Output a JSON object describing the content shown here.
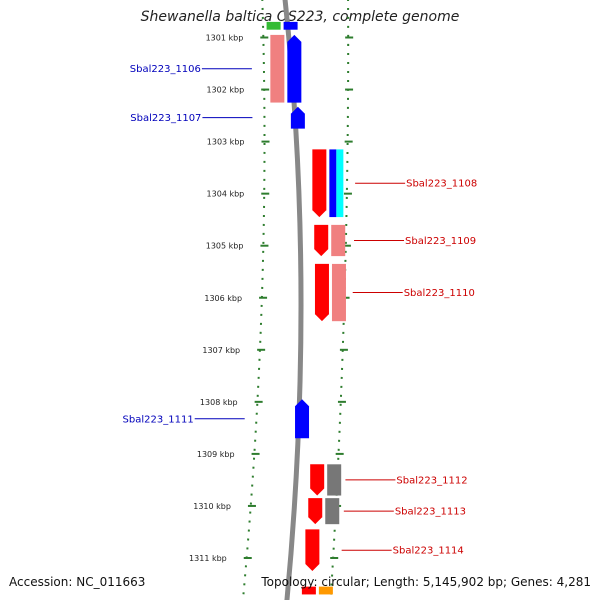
{
  "title": "Shewanella baltica OS223, complete genome",
  "footer": {
    "accession": "Accession: NC_011663",
    "summary": "Topology: circular; Length: 5,145,902 bp; Genes: 4,281"
  },
  "colors": {
    "forward_label": "#cc0000",
    "reverse_label": "#0000bb",
    "ruler": "#2e7d2e",
    "backbone": "#888888"
  },
  "kbp_ticks": [
    {
      "kbp": 1301,
      "label": "1301 kbp"
    },
    {
      "kbp": 1302,
      "label": "1302 kbp"
    },
    {
      "kbp": 1303,
      "label": "1303 kbp"
    },
    {
      "kbp": 1304,
      "label": "1304 kbp"
    },
    {
      "kbp": 1305,
      "label": "1305 kbp"
    },
    {
      "kbp": 1306,
      "label": "1306 kbp"
    },
    {
      "kbp": 1307,
      "label": "1307 kbp"
    },
    {
      "kbp": 1308,
      "label": "1308 kbp"
    },
    {
      "kbp": 1309,
      "label": "1309 kbp"
    },
    {
      "kbp": 1310,
      "label": "1310 kbp"
    },
    {
      "kbp": 1311,
      "label": "1311 kbp"
    }
  ],
  "genes": [
    {
      "id": "gene-1106",
      "label": "Sbal223_1106",
      "strand": "reverse",
      "start_kbp": 1300.95,
      "end_kbp": 1302.25,
      "color": "#0000ff",
      "function_color": "#f08080"
    },
    {
      "id": "gene-1107",
      "label": "Sbal223_1107",
      "strand": "reverse",
      "start_kbp": 1302.33,
      "end_kbp": 1302.75,
      "color": "#0000ff"
    },
    {
      "id": "gene-1108",
      "label": "Sbal223_1108",
      "strand": "forward",
      "start_kbp": 1303.15,
      "end_kbp": 1304.45,
      "color": "#ff0000",
      "function_colors": [
        "#0000ff",
        "#00ffff"
      ]
    },
    {
      "id": "gene-1109",
      "label": "Sbal223_1109",
      "strand": "forward",
      "start_kbp": 1304.6,
      "end_kbp": 1305.2,
      "color": "#ff0000",
      "function_color": "#f08080"
    },
    {
      "id": "gene-1110",
      "label": "Sbal223_1110",
      "strand": "forward",
      "start_kbp": 1305.35,
      "end_kbp": 1306.45,
      "color": "#ff0000",
      "function_color": "#f08080"
    },
    {
      "id": "gene-1111",
      "label": "Sbal223_1111",
      "strand": "reverse",
      "start_kbp": 1307.95,
      "end_kbp": 1308.7,
      "color": "#0000ff"
    },
    {
      "id": "gene-1112",
      "label": "Sbal223_1112",
      "strand": "forward",
      "start_kbp": 1309.2,
      "end_kbp": 1309.8,
      "color": "#ff0000",
      "function_color": "#777777"
    },
    {
      "id": "gene-1113",
      "label": "Sbal223_1113",
      "strand": "forward",
      "start_kbp": 1309.85,
      "end_kbp": 1310.35,
      "color": "#ff0000",
      "function_color": "#777777"
    },
    {
      "id": "gene-1114",
      "label": "Sbal223_1114",
      "strand": "forward",
      "start_kbp": 1310.45,
      "end_kbp": 1311.25,
      "color": "#ff0000"
    }
  ],
  "partial_features": [
    {
      "id": "partial-top-green",
      "start_kbp": 1300.7,
      "end_kbp": 1300.85,
      "color": "#33bb33",
      "track": "reverse-function"
    },
    {
      "id": "partial-top-blue",
      "start_kbp": 1300.7,
      "end_kbp": 1300.85,
      "color": "#0000ff",
      "track": "reverse"
    },
    {
      "id": "partial-bottom-red",
      "start_kbp": 1311.55,
      "end_kbp": 1311.7,
      "color": "#ff0000",
      "track": "forward"
    },
    {
      "id": "partial-bottom-orange",
      "start_kbp": 1311.55,
      "end_kbp": 1311.7,
      "color": "#ff9900",
      "track": "forward-function"
    }
  ]
}
